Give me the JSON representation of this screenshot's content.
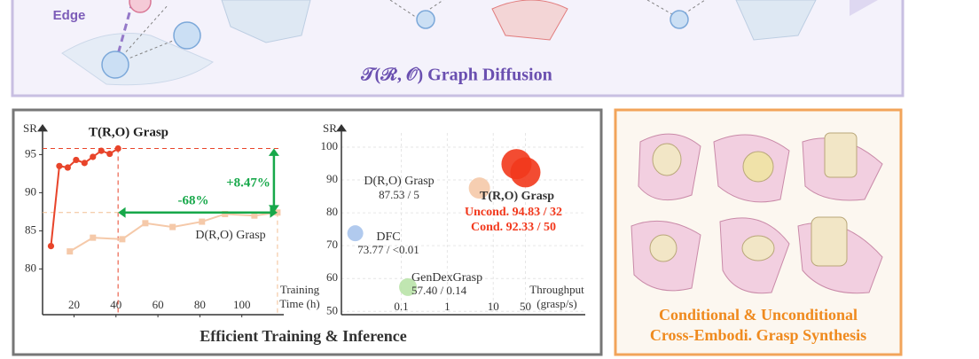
{
  "top_panel": {
    "edge_label": "Edge",
    "title": "𝒯(ℛ, 𝒪) Graph Diffusion"
  },
  "left_panel": {
    "title": "Efficient Training & Inference"
  },
  "right_panel": {
    "caption_lines": [
      "Conditional & Unconditional",
      "Cross-Embodi. Grasp Synthesis"
    ]
  },
  "chart_data": [
    {
      "type": "line",
      "y_label": "SR",
      "x_label_lines": [
        "Training",
        "Time (h)"
      ],
      "xlim": [
        5,
        120
      ],
      "ylim": [
        74,
        99
      ],
      "xticks": [
        20,
        40,
        60,
        80,
        100
      ],
      "yticks": [
        80,
        85,
        90,
        95
      ],
      "grid": false,
      "annotations": [
        "-68%",
        "+8.47%"
      ],
      "series": [
        {
          "name": "T(R,O) Grasp",
          "color": "#e8442a",
          "marker": "circle",
          "x": [
            9,
            13,
            17,
            21,
            25,
            29,
            33,
            37,
            41
          ],
          "values": [
            83,
            93.5,
            93.3,
            94.3,
            93.9,
            94.7,
            95.5,
            95.1,
            95.8
          ]
        },
        {
          "name": "D(R,O) Grasp",
          "color": "#f5c9a9",
          "marker": "square",
          "x": [
            18,
            29,
            43,
            54,
            67,
            81,
            92,
            106,
            117
          ],
          "values": [
            82.3,
            84.1,
            83.9,
            86,
            85.5,
            86.2,
            87.2,
            87,
            87.4
          ]
        }
      ]
    },
    {
      "type": "scatter",
      "y_label": "SR",
      "x_label_lines": [
        "Throughput",
        "(grasp/s)"
      ],
      "x_log": true,
      "xlim": [
        0.005,
        1000
      ],
      "ylim": [
        49,
        107
      ],
      "xticks": [
        0.1,
        1,
        10,
        50
      ],
      "yticks": [
        50,
        60,
        70,
        80,
        90,
        100
      ],
      "grid": true,
      "series": [
        {
          "name": "DFC",
          "color": "#a9c4ec",
          "x": [
            0.01
          ],
          "values": [
            73.77
          ],
          "value_labels": [
            "73.77 / <0.01"
          ]
        },
        {
          "name": "GenDexGrasp",
          "color": "#b9e3a8",
          "x": [
            0.14
          ],
          "values": [
            57.4
          ],
          "value_labels": [
            "57.40 / 0.14"
          ]
        },
        {
          "name": "D(R,O) Grasp",
          "color": "#f5c9a9",
          "x": [
            5
          ],
          "values": [
            87.53
          ],
          "value_labels": [
            "87.53 / 5"
          ]
        },
        {
          "name": "T(R,O) Grasp",
          "color": "#f2381c",
          "x": [
            32,
            50
          ],
          "values": [
            94.83,
            92.33
          ],
          "value_labels": [
            "Uncond.  94.83 / 32",
            "Cond.  92.33 / 50"
          ]
        }
      ]
    }
  ]
}
